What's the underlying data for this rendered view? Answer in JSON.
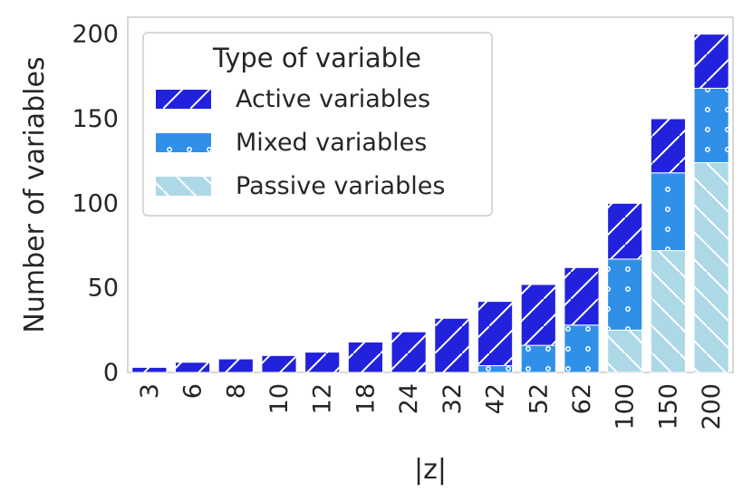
{
  "chart_data": {
    "type": "bar",
    "stacked": true,
    "categories": [
      "3",
      "6",
      "8",
      "10",
      "12",
      "18",
      "24",
      "32",
      "42",
      "52",
      "62",
      "100",
      "150",
      "200"
    ],
    "series": [
      {
        "name": "Passive variables",
        "color": "#add8e6",
        "hatch": "backslash",
        "values": [
          0,
          0,
          0,
          0,
          0,
          0,
          0,
          0,
          0,
          0,
          0,
          25,
          72,
          124
        ]
      },
      {
        "name": "Mixed variables",
        "color": "#3090e8",
        "hatch": "dots",
        "values": [
          0,
          0,
          0,
          0,
          0,
          0,
          0,
          0,
          4,
          16,
          28,
          42,
          46,
          44
        ]
      },
      {
        "name": "Active variables",
        "color": "#2222dd",
        "hatch": "slash",
        "values": [
          3,
          6,
          8,
          10,
          12,
          18,
          24,
          32,
          38,
          36,
          34,
          33,
          32,
          32
        ]
      }
    ],
    "xlabel": "|z|",
    "ylabel": "Number of variables",
    "ylim": [
      0,
      210
    ],
    "yticks": [
      0,
      50,
      100,
      150,
      200
    ],
    "legend": {
      "title": "Type of variable",
      "placement": "top-left",
      "order": [
        "Active variables",
        "Mixed variables",
        "Passive variables"
      ]
    },
    "grid": false
  }
}
